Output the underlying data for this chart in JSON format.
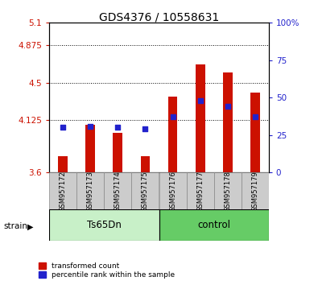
{
  "title": "GDS4376 / 10558631",
  "samples": [
    "GSM957172",
    "GSM957173",
    "GSM957174",
    "GSM957175",
    "GSM957176",
    "GSM957177",
    "GSM957178",
    "GSM957179"
  ],
  "group_labels": [
    "Ts65Dn",
    "control"
  ],
  "transformed_counts": [
    3.76,
    4.08,
    4.0,
    3.76,
    4.36,
    4.68,
    4.6,
    4.4
  ],
  "percentile_ranks": [
    30,
    31,
    30,
    29,
    37,
    48,
    44,
    37
  ],
  "ymin": 3.6,
  "ymax": 5.1,
  "yticks": [
    3.6,
    4.125,
    4.5,
    4.875,
    5.1
  ],
  "ytick_labels": [
    "3.6",
    "4.125",
    "4.5",
    "4.875",
    "5.1"
  ],
  "right_yticks": [
    0,
    25,
    50,
    75,
    100
  ],
  "right_ytick_labels": [
    "0",
    "25",
    "50",
    "75",
    "100%"
  ],
  "bar_color": "#cc1100",
  "dot_color": "#2222cc",
  "bar_width": 0.35,
  "sample_box_color": "#cccccc",
  "group1_color": "#c8f0c8",
  "group2_color": "#66cc66",
  "plot_bg_color": "#ffffff",
  "legend_red": "transformed count",
  "legend_blue": "percentile rank within the sample",
  "strain_label": "strain"
}
